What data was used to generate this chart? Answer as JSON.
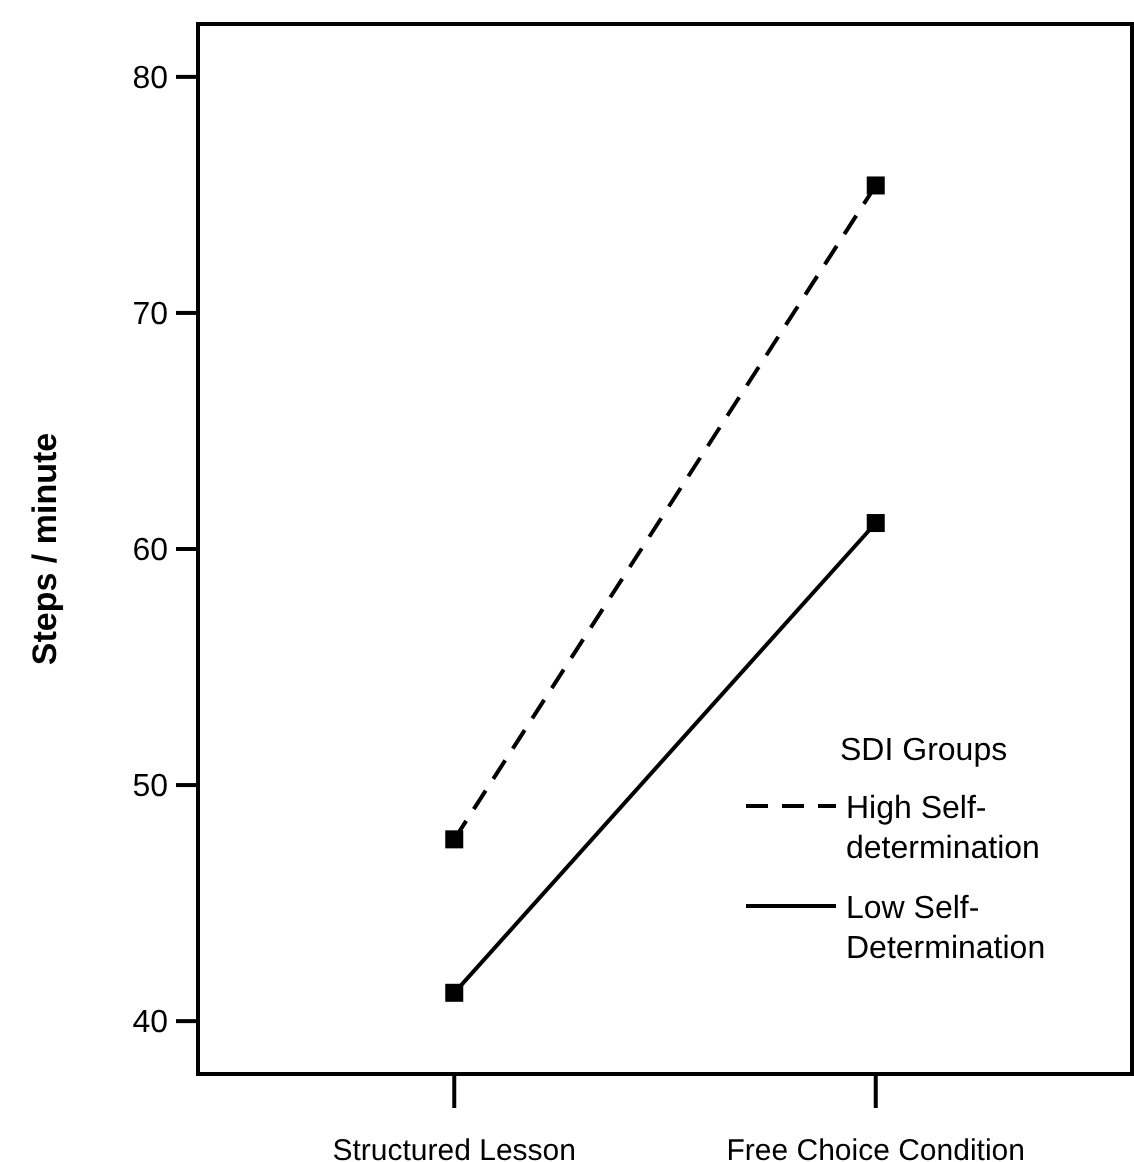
{
  "chart_data": {
    "type": "line",
    "ylabel": "Steps / minute",
    "legend_title": "SDI Groups",
    "legend": "bottom right",
    "marker": "square",
    "grid": false,
    "categories": [
      "Structured Lesson",
      "Free Choice Condition"
    ],
    "ylim": [
      37.76,
      82.24
    ],
    "yticks": [
      40,
      50,
      60,
      70,
      80
    ],
    "series": [
      {
        "name": "High Self-determination",
        "color": "#000000",
        "line_style": "dashed",
        "values": [
          47.7,
          75.4
        ]
      },
      {
        "name": "Low Self-Determination",
        "color": "#000000",
        "line_style": "solid",
        "values": [
          41.2,
          61.1
        ]
      }
    ]
  }
}
